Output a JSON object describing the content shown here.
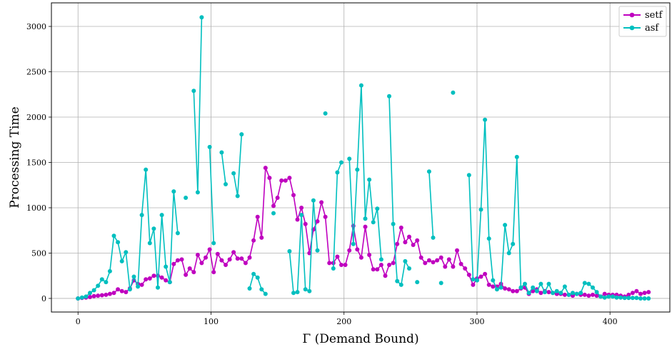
{
  "chart_data": {
    "type": "line",
    "xlabel": "Γ (Demand Bound)",
    "ylabel": "Processing Time",
    "xlim": [
      -20,
      445
    ],
    "ylim": [
      -150,
      3260
    ],
    "xticks": [
      0,
      100,
      200,
      300,
      400
    ],
    "yticks": [
      0,
      500,
      1000,
      1500,
      2000,
      2500,
      3000
    ],
    "grid": true,
    "legend": "top-right",
    "series": [
      {
        "name": "setf",
        "color": "#bf00bf",
        "segments": [
          [
            [
              0,
              0
            ],
            [
              3,
              5
            ],
            [
              6,
              10
            ],
            [
              9,
              15
            ],
            [
              12,
              25
            ],
            [
              15,
              30
            ],
            [
              18,
              35
            ],
            [
              21,
              40
            ],
            [
              24,
              50
            ],
            [
              27,
              60
            ],
            [
              30,
              100
            ],
            [
              33,
              80
            ],
            [
              36,
              70
            ],
            [
              39,
              110
            ],
            [
              42,
              200
            ],
            [
              45,
              160
            ],
            [
              48,
              150
            ],
            [
              51,
              210
            ],
            [
              54,
              220
            ],
            [
              57,
              250
            ],
            [
              60,
              250
            ],
            [
              63,
              230
            ],
            [
              66,
              200
            ],
            [
              69,
              180
            ],
            [
              72,
              380
            ],
            [
              75,
              420
            ],
            [
              78,
              430
            ],
            [
              81,
              260
            ],
            [
              84,
              330
            ],
            [
              87,
              290
            ],
            [
              90,
              480
            ],
            [
              93,
              390
            ],
            [
              96,
              450
            ],
            [
              99,
              540
            ],
            [
              102,
              290
            ],
            [
              105,
              490
            ],
            [
              108,
              420
            ],
            [
              111,
              370
            ],
            [
              114,
              430
            ],
            [
              117,
              510
            ],
            [
              120,
              440
            ],
            [
              123,
              440
            ],
            [
              126,
              390
            ],
            [
              129,
              450
            ],
            [
              132,
              640
            ],
            [
              135,
              900
            ],
            [
              138,
              670
            ],
            [
              141,
              1440
            ],
            [
              144,
              1330
            ],
            [
              147,
              1020
            ],
            [
              150,
              1110
            ],
            [
              153,
              1300
            ],
            [
              156,
              1300
            ],
            [
              159,
              1330
            ],
            [
              162,
              1140
            ],
            [
              165,
              870
            ],
            [
              168,
              1000
            ],
            [
              171,
              820
            ],
            [
              174,
              500
            ],
            [
              177,
              760
            ],
            [
              180,
              850
            ],
            [
              183,
              1060
            ],
            [
              186,
              900
            ],
            [
              189,
              390
            ],
            [
              192,
              390
            ],
            [
              195,
              460
            ],
            [
              198,
              370
            ],
            [
              201,
              370
            ],
            [
              204,
              530
            ],
            [
              207,
              800
            ],
            [
              210,
              540
            ],
            [
              213,
              450
            ],
            [
              216,
              790
            ],
            [
              219,
              480
            ],
            [
              222,
              320
            ],
            [
              225,
              320
            ],
            [
              228,
              370
            ],
            [
              231,
              250
            ],
            [
              234,
              370
            ],
            [
              237,
              390
            ],
            [
              240,
              600
            ],
            [
              243,
              780
            ],
            [
              246,
              620
            ],
            [
              249,
              680
            ],
            [
              252,
              590
            ],
            [
              255,
              640
            ],
            [
              258,
              450
            ],
            [
              261,
              390
            ],
            [
              264,
              420
            ],
            [
              267,
              400
            ],
            [
              270,
              420
            ],
            [
              273,
              450
            ],
            [
              276,
              350
            ],
            [
              279,
              430
            ],
            [
              282,
              350
            ],
            [
              285,
              530
            ],
            [
              288,
              380
            ],
            [
              291,
              330
            ],
            [
              294,
              260
            ],
            [
              297,
              150
            ],
            [
              300,
              220
            ],
            [
              303,
              240
            ],
            [
              306,
              270
            ],
            [
              309,
              150
            ],
            [
              312,
              130
            ],
            [
              315,
              130
            ],
            [
              318,
              160
            ],
            [
              321,
              110
            ],
            [
              324,
              100
            ],
            [
              327,
              80
            ],
            [
              330,
              80
            ],
            [
              333,
              110
            ],
            [
              336,
              120
            ],
            [
              339,
              50
            ],
            [
              342,
              80
            ],
            [
              345,
              100
            ],
            [
              348,
              60
            ],
            [
              351,
              80
            ],
            [
              354,
              70
            ],
            [
              357,
              60
            ],
            [
              360,
              50
            ],
            [
              363,
              50
            ],
            [
              366,
              40
            ],
            [
              369,
              40
            ],
            [
              372,
              30
            ],
            [
              375,
              50
            ],
            [
              378,
              40
            ],
            [
              381,
              40
            ],
            [
              384,
              30
            ],
            [
              387,
              40
            ],
            [
              390,
              30
            ],
            [
              393,
              20
            ],
            [
              396,
              50
            ],
            [
              399,
              40
            ],
            [
              402,
              40
            ],
            [
              405,
              40
            ],
            [
              408,
              30
            ],
            [
              411,
              20
            ],
            [
              414,
              40
            ],
            [
              417,
              60
            ],
            [
              420,
              80
            ],
            [
              423,
              50
            ],
            [
              426,
              60
            ],
            [
              429,
              70
            ]
          ]
        ]
      },
      {
        "name": "asf",
        "color": "#00bfbf",
        "segments": [
          [
            [
              0,
              0
            ],
            [
              3,
              10
            ],
            [
              6,
              20
            ],
            [
              9,
              60
            ],
            [
              12,
              90
            ],
            [
              15,
              140
            ],
            [
              18,
              210
            ],
            [
              21,
              180
            ],
            [
              24,
              300
            ],
            [
              27,
              690
            ],
            [
              30,
              620
            ],
            [
              33,
              410
            ],
            [
              36,
              510
            ],
            [
              39,
              100
            ],
            [
              42,
              240
            ],
            [
              45,
              130
            ],
            [
              48,
              920
            ],
            [
              51,
              1420
            ],
            [
              54,
              610
            ],
            [
              57,
              770
            ],
            [
              60,
              120
            ],
            [
              63,
              920
            ],
            [
              66,
              350
            ],
            [
              69,
              180
            ],
            [
              72,
              1180
            ],
            [
              75,
              720
            ]
          ],
          [
            [
              81,
              1110
            ]
          ],
          [
            [
              87,
              2290
            ],
            [
              90,
              1170
            ],
            [
              93,
              3100
            ]
          ],
          [
            [
              99,
              1670
            ],
            [
              102,
              610
            ]
          ],
          [
            [
              108,
              1610
            ],
            [
              111,
              1260
            ]
          ],
          [
            [
              117,
              1380
            ],
            [
              120,
              1130
            ],
            [
              123,
              1810
            ]
          ],
          [
            [
              129,
              110
            ],
            [
              132,
              270
            ],
            [
              135,
              230
            ],
            [
              138,
              100
            ],
            [
              141,
              50
            ]
          ],
          [
            [
              147,
              940
            ]
          ],
          [
            [
              159,
              520
            ],
            [
              162,
              60
            ],
            [
              165,
              70
            ],
            [
              168,
              920
            ],
            [
              171,
              100
            ],
            [
              174,
              80
            ],
            [
              177,
              1080
            ],
            [
              180,
              530
            ]
          ],
          [
            [
              186,
              2040
            ]
          ],
          [
            [
              192,
              330
            ],
            [
              195,
              1390
            ],
            [
              198,
              1500
            ]
          ],
          [
            [
              204,
              1540
            ],
            [
              207,
              600
            ],
            [
              210,
              1420
            ],
            [
              213,
              2350
            ],
            [
              216,
              880
            ],
            [
              219,
              1310
            ],
            [
              222,
              840
            ],
            [
              225,
              990
            ],
            [
              228,
              430
            ]
          ],
          [
            [
              234,
              2230
            ],
            [
              237,
              820
            ],
            [
              240,
              190
            ],
            [
              243,
              150
            ],
            [
              246,
              410
            ],
            [
              249,
              330
            ]
          ],
          [
            [
              255,
              180
            ]
          ],
          [
            [
              264,
              1400
            ],
            [
              267,
              670
            ]
          ],
          [
            [
              273,
              170
            ]
          ],
          [
            [
              282,
              2270
            ]
          ],
          [
            [
              294,
              1360
            ],
            [
              297,
              210
            ],
            [
              300,
              200
            ],
            [
              303,
              980
            ],
            [
              306,
              1970
            ],
            [
              309,
              660
            ],
            [
              312,
              200
            ],
            [
              315,
              100
            ],
            [
              318,
              120
            ],
            [
              321,
              810
            ],
            [
              324,
              500
            ],
            [
              327,
              600
            ],
            [
              330,
              1560
            ],
            [
              333,
              120
            ],
            [
              336,
              160
            ],
            [
              339,
              60
            ],
            [
              342,
              120
            ],
            [
              345,
              80
            ],
            [
              348,
              160
            ],
            [
              351,
              70
            ],
            [
              354,
              160
            ],
            [
              357,
              60
            ],
            [
              360,
              80
            ],
            [
              363,
              60
            ],
            [
              366,
              130
            ],
            [
              369,
              40
            ],
            [
              372,
              60
            ],
            [
              375,
              50
            ],
            [
              378,
              60
            ],
            [
              381,
              170
            ],
            [
              384,
              160
            ],
            [
              387,
              120
            ],
            [
              390,
              70
            ],
            [
              393,
              20
            ],
            [
              396,
              10
            ],
            [
              399,
              20
            ],
            [
              402,
              20
            ],
            [
              405,
              10
            ],
            [
              408,
              10
            ],
            [
              411,
              5
            ],
            [
              414,
              5
            ],
            [
              417,
              5
            ],
            [
              420,
              5
            ],
            [
              423,
              0
            ],
            [
              426,
              0
            ],
            [
              429,
              0
            ]
          ]
        ]
      }
    ]
  }
}
